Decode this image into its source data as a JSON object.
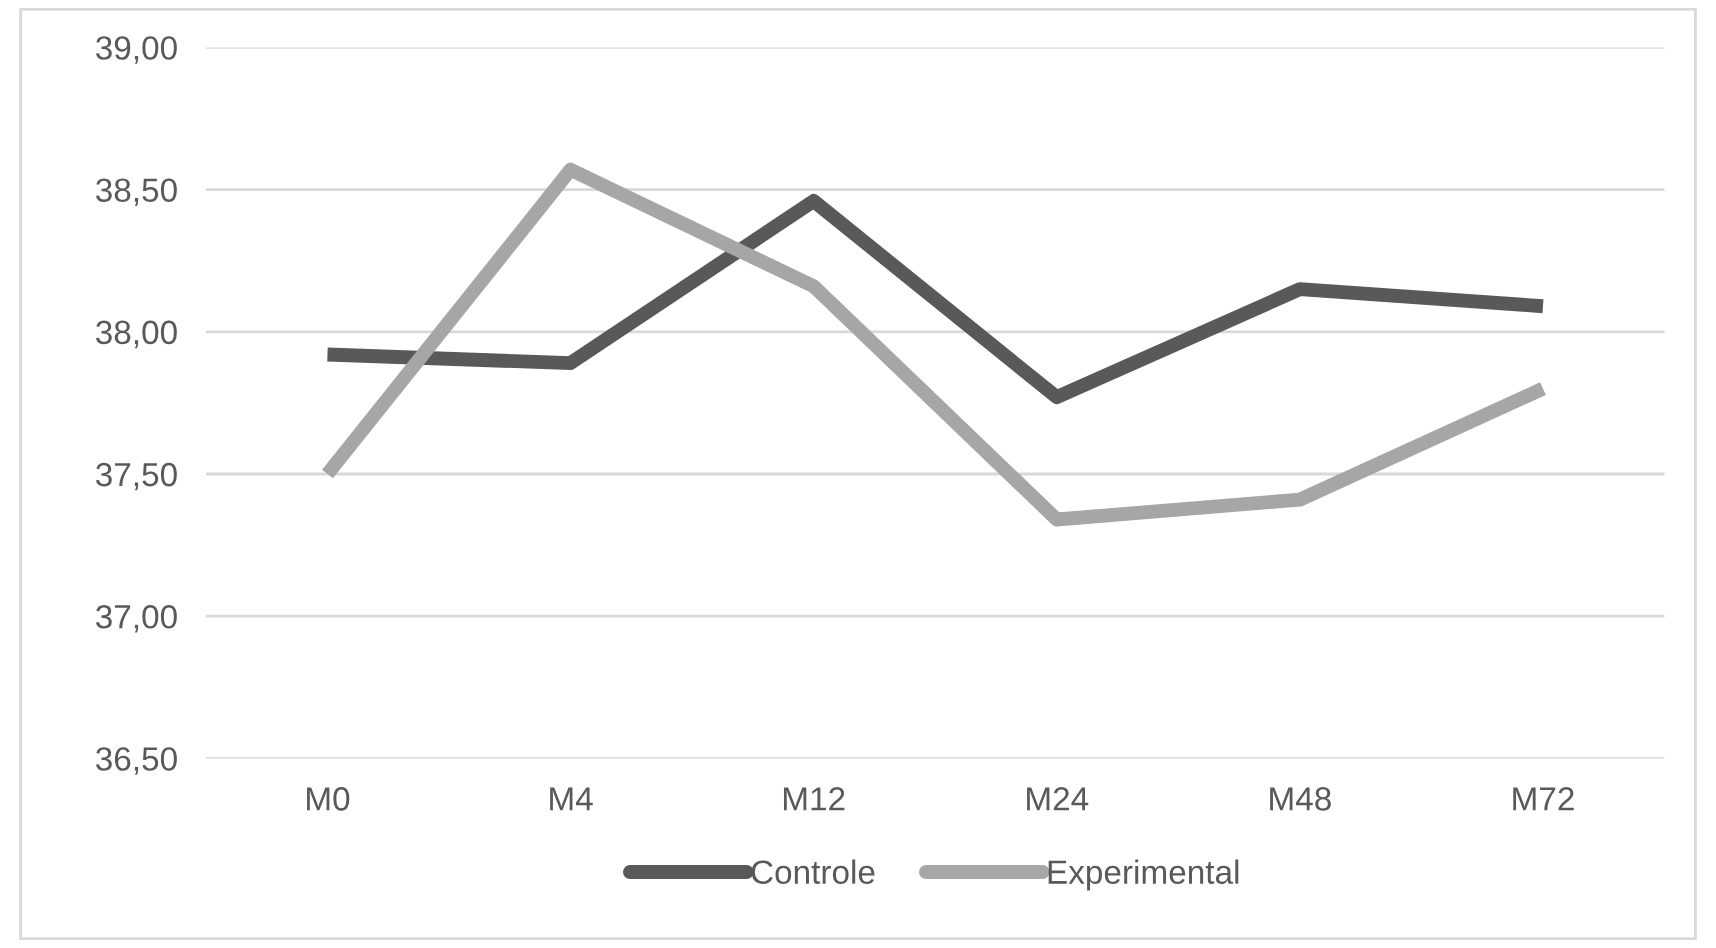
{
  "chart_data": {
    "type": "line",
    "categories": [
      "M0",
      "M4",
      "M12",
      "M24",
      "M48",
      "M72"
    ],
    "series": [
      {
        "name": "Controle",
        "color": "#595959",
        "values": [
          37.92,
          37.89,
          38.46,
          37.77,
          38.15,
          38.09
        ]
      },
      {
        "name": "Experimental",
        "color": "#a6a6a6",
        "values": [
          37.5,
          38.57,
          38.16,
          37.34,
          37.41,
          37.8
        ]
      }
    ],
    "ylim": [
      36.5,
      39.0
    ],
    "yticks": [
      {
        "value": 36.5,
        "label": "36,50"
      },
      {
        "value": 37.0,
        "label": "37,00"
      },
      {
        "value": 37.5,
        "label": "37,50"
      },
      {
        "value": 38.0,
        "label": "38,00"
      },
      {
        "value": 38.5,
        "label": "38,50"
      },
      {
        "value": 39.0,
        "label": "39,00"
      }
    ],
    "grid": "y",
    "legend": "bottom",
    "marker": "none",
    "line_style": "solid"
  }
}
